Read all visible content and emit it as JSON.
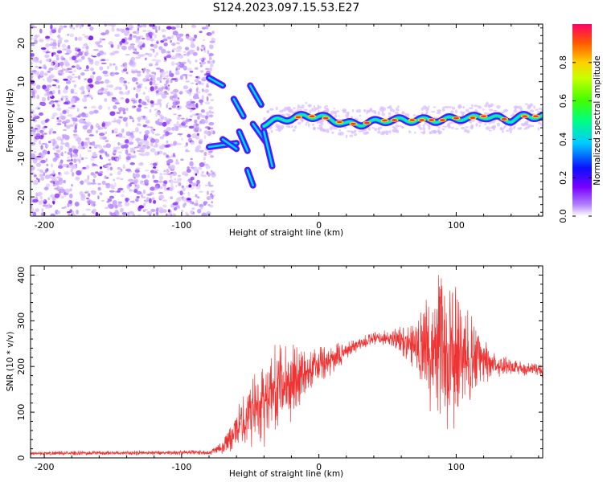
{
  "title": "S124.2023.097.15.53.E27",
  "chart_data": [
    {
      "type": "heatmap",
      "name": "spectrogram",
      "xlabel": "Height of straight line (km)",
      "ylabel": "Frequency (Hz)",
      "xlim": [
        -210,
        163
      ],
      "ylim": [
        -25,
        25
      ],
      "xticks": [
        -200,
        -100,
        0,
        100
      ],
      "xtick_labels": [
        "-200",
        "-100",
        "0",
        "100"
      ],
      "yticks": [
        -20,
        -10,
        0,
        10,
        20
      ],
      "ytick_labels": [
        "-20",
        "-10",
        "0",
        "10",
        "20"
      ],
      "noise_region_x": [
        -210,
        -80
      ],
      "track": {
        "x": [
          -40,
          -30,
          -20,
          -10,
          0,
          10,
          20,
          30,
          40,
          50,
          60,
          70,
          80,
          90,
          100,
          110,
          120,
          130,
          140,
          150,
          160
        ],
        "freq": [
          -1,
          0,
          0.5,
          1,
          1,
          0,
          -1,
          -1,
          -0.5,
          0,
          0,
          0,
          0,
          0,
          0.5,
          0.5,
          1,
          0.5,
          0,
          1,
          1
        ]
      },
      "colorbar": {
        "label": "Normalized spectral amplitude",
        "range": [
          0,
          1
        ],
        "ticks": [
          0.0,
          0.2,
          0.4,
          0.6,
          0.8
        ],
        "tick_labels": [
          "0.0",
          "0.2",
          "0.4",
          "0.6",
          "0.8"
        ]
      }
    },
    {
      "type": "line",
      "name": "snr",
      "xlabel": "Height of straight line (km)",
      "ylabel": "SNR (10 * v/v)",
      "xlim": [
        -210,
        163
      ],
      "ylim": [
        0,
        420
      ],
      "xticks": [
        -200,
        -100,
        0,
        100
      ],
      "xtick_labels": [
        "-200",
        "-100",
        "0",
        "100"
      ],
      "yticks": [
        0,
        100,
        200,
        300,
        400
      ],
      "ytick_labels": [
        "0",
        "100",
        "200",
        "300",
        "400"
      ],
      "color": "#ee3333",
      "envelope": {
        "x": [
          -210,
          -80,
          -70,
          -60,
          -50,
          -40,
          -30,
          -20,
          -10,
          0,
          10,
          20,
          30,
          40,
          50,
          60,
          70,
          80,
          90,
          100,
          110,
          120,
          130,
          140,
          150,
          163
        ],
        "y": [
          10,
          12,
          25,
          60,
          100,
          130,
          150,
          170,
          190,
          200,
          215,
          235,
          250,
          260,
          262,
          258,
          250,
          240,
          235,
          225,
          215,
          210,
          205,
          200,
          195,
          192
        ],
        "spread": [
          4,
          5,
          15,
          40,
          70,
          90,
          90,
          80,
          55,
          40,
          30,
          20,
          15,
          15,
          15,
          30,
          50,
          120,
          160,
          150,
          100,
          50,
          25,
          20,
          15,
          15
        ]
      }
    }
  ]
}
